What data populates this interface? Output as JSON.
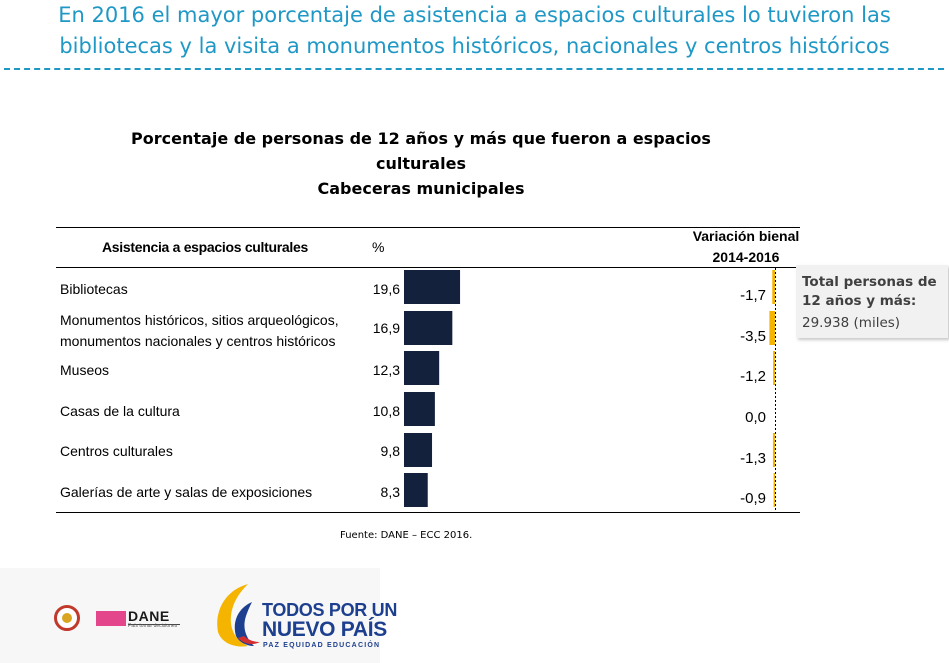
{
  "headline": {
    "line1": "En 2016 el mayor porcentaje de asistencia a espacios culturales lo tuvieron las",
    "line2": "bibliotecas  y la visita a monumentos históricos, nacionales y centros históricos"
  },
  "chart_data": {
    "type": "bar",
    "title": [
      "Porcentaje de personas de 12 años y más que fueron a espacios",
      "culturales",
      "Cabeceras municipales"
    ],
    "column_headers": {
      "category": "Asistencia a espacios culturales",
      "value": "%",
      "variation_line1": "Variación bienal",
      "variation_line2": "2014-2016"
    },
    "categories": [
      [
        "Bibliotecas"
      ],
      [
        "Monumentos históricos, sitios arqueológicos,",
        "monumentos nacionales y centros históricos"
      ],
      [
        "Museos"
      ],
      [
        "Casas de la cultura"
      ],
      [
        "Centros culturales"
      ],
      [
        "Galerías de arte y salas de exposiciones"
      ]
    ],
    "series": [
      {
        "values": [
          19.6,
          16.9,
          12.3,
          10.8,
          9.8,
          8.3
        ],
        "labels": [
          "19,6",
          "16,9",
          "12,3",
          "10,8",
          "9,8",
          "8,3"
        ],
        "color": "#14213d"
      },
      {
        "values": [
          -1.7,
          -3.5,
          -1.2,
          0.0,
          -1.3,
          -0.9
        ],
        "labels": [
          "-1,7",
          "-3,5",
          "-1,2",
          "0,0",
          "-1,3",
          "-0,9"
        ],
        "color": "#f4b400"
      }
    ]
  },
  "side_note": {
    "title": "Total personas de 12 años y más:",
    "value": "29.938  (miles)"
  },
  "source": "Fuente: DANE – ECC 2016.",
  "logos": {
    "dane_text": "DANE",
    "dane_sub": "País tomar decisiones",
    "pais_line1": "TODOS POR UN",
    "pais_line2": "NUEVO PAÍS",
    "pais_sub": "PAZ  EQUIDAD  EDUCACIÓN"
  }
}
